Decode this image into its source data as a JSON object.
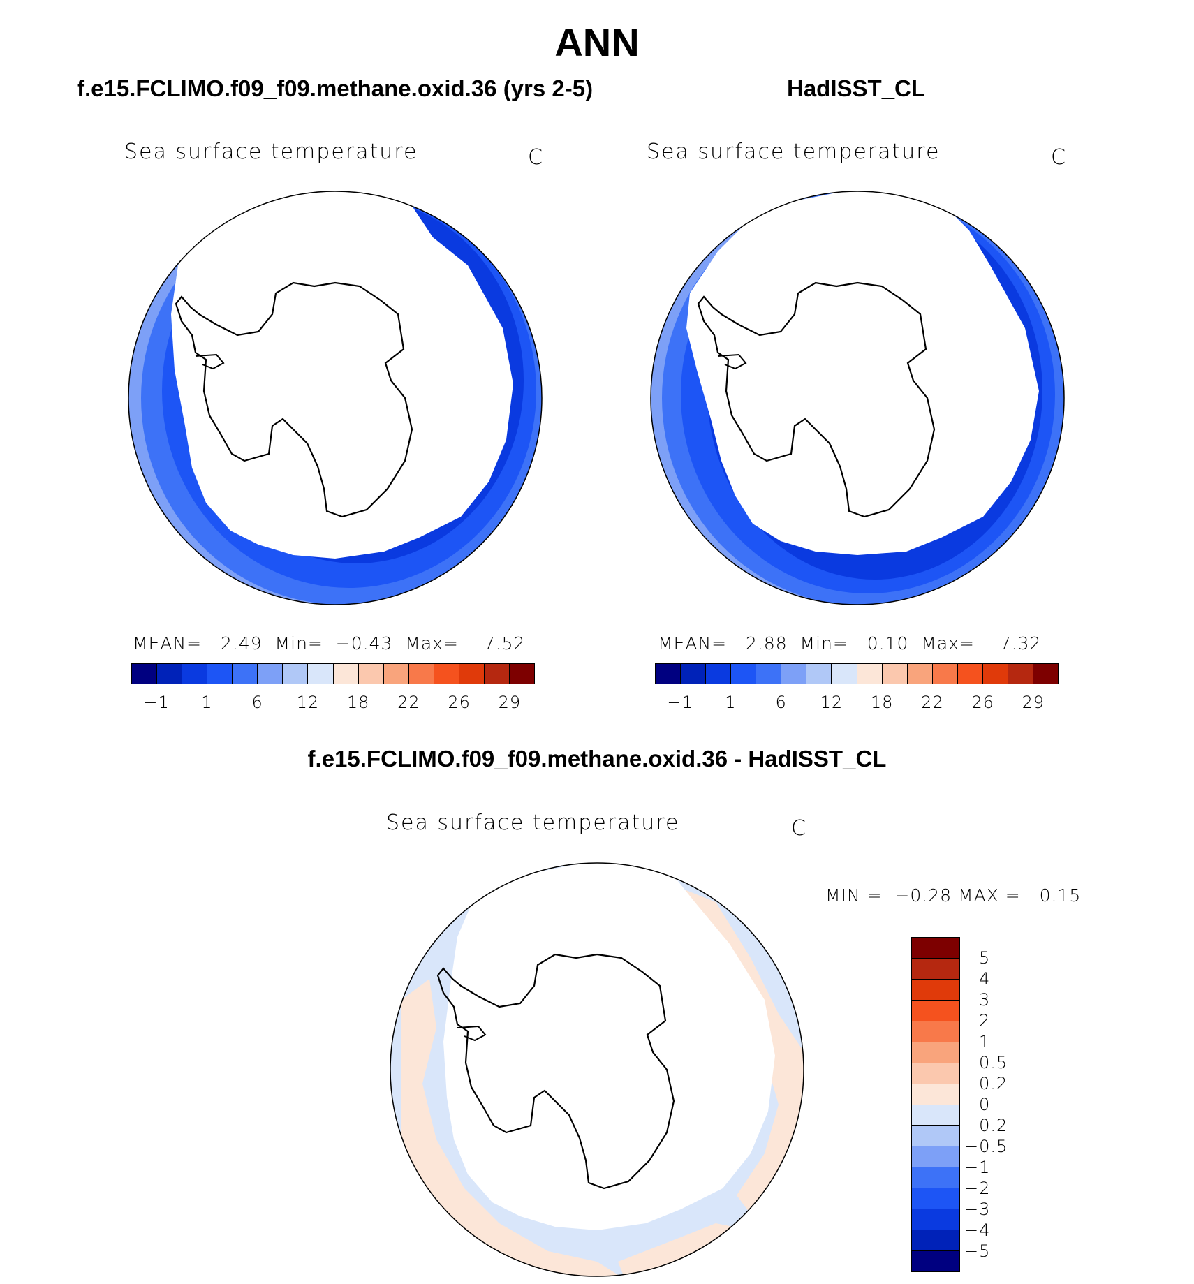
{
  "page": {
    "title": "ANN"
  },
  "panels": {
    "left": {
      "case_title": "f.e15.FCLIMO.f09_f09.methane.oxid.36 (yrs 2-5)",
      "variable": "Sea surface temperature",
      "units": "C",
      "mean_label": "MEAN=",
      "mean_value": "2.49",
      "min_label": "Min=",
      "min_value": "−0.43",
      "max_label": "Max=",
      "max_value": "7.52"
    },
    "right": {
      "case_title": "HadISST_CL",
      "variable": "Sea surface temperature",
      "units": "C",
      "mean_label": "MEAN=",
      "mean_value": "2.88",
      "min_label": "Min=",
      "min_value": "0.10",
      "max_label": "Max=",
      "max_value": "7.32"
    },
    "diff": {
      "case_title": "f.e15.FCLIMO.f09_f09.methane.oxid.36 - HadISST_CL",
      "variable": "Sea surface temperature",
      "units": "C",
      "min_label": "MIN =",
      "min_value": "−0.28",
      "max_label": "MAX =",
      "max_value": "0.15"
    }
  },
  "colorbar_abs": {
    "colors": [
      "#000080",
      "#0022b8",
      "#0a3ae0",
      "#1d55f5",
      "#3d72f7",
      "#7da0f7",
      "#b0c8f7",
      "#d9e6fa",
      "#fce6d8",
      "#fbc8ae",
      "#f9a47c",
      "#f8794a",
      "#f5521e",
      "#e03a0a",
      "#b52810",
      "#7d0000"
    ],
    "tick_labels": [
      "−1",
      "1",
      "6",
      "12",
      "18",
      "22",
      "26",
      "29"
    ]
  },
  "colorbar_diff": {
    "colors": [
      "#7d0000",
      "#b52810",
      "#e03a0a",
      "#f5521e",
      "#f8794a",
      "#f9a47c",
      "#fbc8ae",
      "#fce6d8",
      "#d9e6fa",
      "#b0c8f7",
      "#7da0f7",
      "#3d72f7",
      "#1d55f5",
      "#0a3ae0",
      "#0022b8",
      "#000080"
    ],
    "tick_labels": [
      "5",
      "4",
      "3",
      "2",
      "1",
      "0.5",
      "0.2",
      "0",
      "−0.2",
      "−0.5",
      "−1",
      "−2",
      "−3",
      "−4",
      "−5"
    ]
  },
  "map_colors": {
    "deep_blue": "#0a3ae0",
    "mid_blue": "#1d55f5",
    "light_blue": "#3d72f7",
    "pale_blue": "#7da0f7",
    "diff_warm": "#fce6d8",
    "diff_cool": "#d9e6fa"
  }
}
